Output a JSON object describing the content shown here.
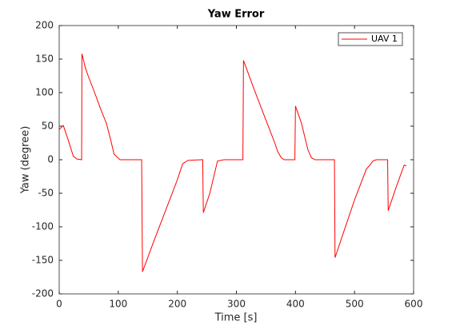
{
  "chart_data": {
    "type": "line",
    "title": "Yaw Error",
    "xlabel": "Time [s]",
    "ylabel": "Yaw (degree)",
    "x": [
      0,
      7,
      15,
      24,
      30,
      38,
      38.5,
      44,
      49,
      60,
      70,
      80,
      87,
      93,
      103,
      139.6,
      141,
      160,
      180,
      200,
      209,
      218,
      241,
      243,
      244,
      255,
      268,
      279,
      309,
      311,
      312,
      330,
      350,
      365,
      370,
      376,
      381,
      398,
      399,
      400,
      410,
      421,
      427,
      433,
      466,
      467,
      480,
      500,
      520,
      526,
      531,
      537,
      556,
      557,
      570,
      584,
      588
    ],
    "series": [
      {
        "name": "UAV 1",
        "color": "#ff0000",
        "values": [
          45,
          51,
          30,
          5,
          1,
          0,
          158,
          138,
          125,
          100,
          76,
          54,
          30,
          8,
          0,
          0,
          -167,
          -122,
          -76,
          -30,
          -6,
          -1,
          0,
          0,
          -79,
          -50,
          -2,
          0,
          0,
          0,
          148,
          105,
          59,
          25,
          12,
          3,
          0,
          0,
          0,
          80,
          55,
          15,
          3,
          0,
          0,
          -146,
          -112,
          -60,
          -14,
          -8,
          -2,
          0,
          0,
          -76,
          -42,
          -8,
          -9
        ]
      }
    ],
    "xlim": [
      0,
      600
    ],
    "xticks": [
      0,
      100,
      200,
      300,
      400,
      500,
      600
    ],
    "ylim": [
      -200,
      200
    ],
    "yticks": [
      -200,
      -150,
      -100,
      -50,
      0,
      50,
      100,
      150,
      200
    ],
    "legend": "northeast"
  }
}
